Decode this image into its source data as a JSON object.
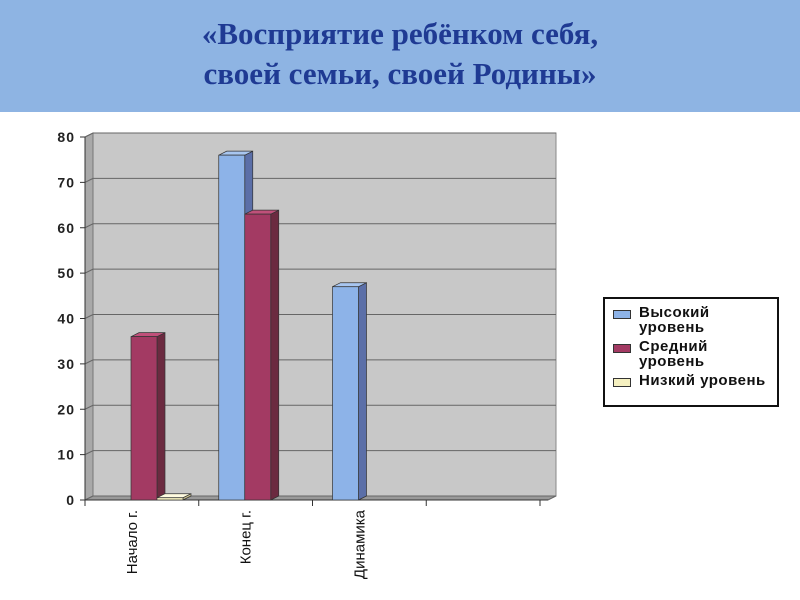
{
  "title_line1": "«Восприятие ребёнком себя,",
  "title_line2": "своей семьи, своей Родины»",
  "chart_data": {
    "type": "bar",
    "style": "3d-clustered-column",
    "categories": [
      "Начало г.",
      "Конец г.",
      "Динамика",
      ""
    ],
    "series": [
      {
        "name": "Высокий уровень",
        "color": "#8db3e8",
        "values": [
          0,
          76,
          47,
          0
        ]
      },
      {
        "name": "Средний уровень",
        "color": "#a33a63",
        "values": [
          36,
          63,
          0,
          0
        ]
      },
      {
        "name": "Низкий уровень",
        "color": "#f5f0c0",
        "values": [
          0.5,
          0,
          0,
          0
        ]
      }
    ],
    "yticks": [
      "0",
      "10",
      "20",
      "30",
      "40",
      "50",
      "60",
      "70",
      "80"
    ],
    "ylim": [
      0,
      80
    ],
    "grid": true,
    "legend": "right",
    "xlabel": "",
    "ylabel": ""
  }
}
